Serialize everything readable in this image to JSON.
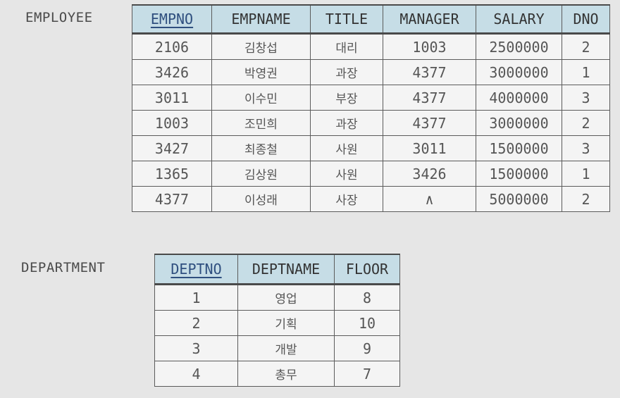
{
  "employee": {
    "label": "EMPLOYEE",
    "columns": [
      "EMPNO",
      "EMPNAME",
      "TITLE",
      "MANAGER",
      "SALARY",
      "DNO"
    ],
    "rows": [
      [
        "2106",
        "김창섭",
        "대리",
        "1003",
        "2500000",
        "2"
      ],
      [
        "3426",
        "박영권",
        "과장",
        "4377",
        "3000000",
        "1"
      ],
      [
        "3011",
        "이수민",
        "부장",
        "4377",
        "4000000",
        "3"
      ],
      [
        "1003",
        "조민희",
        "과장",
        "4377",
        "3000000",
        "2"
      ],
      [
        "3427",
        "최종철",
        "사원",
        "3011",
        "1500000",
        "3"
      ],
      [
        "1365",
        "김상원",
        "사원",
        "3426",
        "1500000",
        "1"
      ],
      [
        "4377",
        "이성래",
        "사장",
        "∧",
        "5000000",
        "2"
      ]
    ]
  },
  "department": {
    "label": "DEPARTMENT",
    "columns": [
      "DEPTNO",
      "DEPTNAME",
      "FLOOR"
    ],
    "rows": [
      [
        "1",
        "영업",
        "8"
      ],
      [
        "2",
        "기획",
        "10"
      ],
      [
        "3",
        "개발",
        "9"
      ],
      [
        "4",
        "총무",
        "7"
      ]
    ]
  },
  "colors": {
    "header_bg": "#c6dde6",
    "key_text": "#2f4f7f",
    "page_bg": "#e6e6e6"
  }
}
